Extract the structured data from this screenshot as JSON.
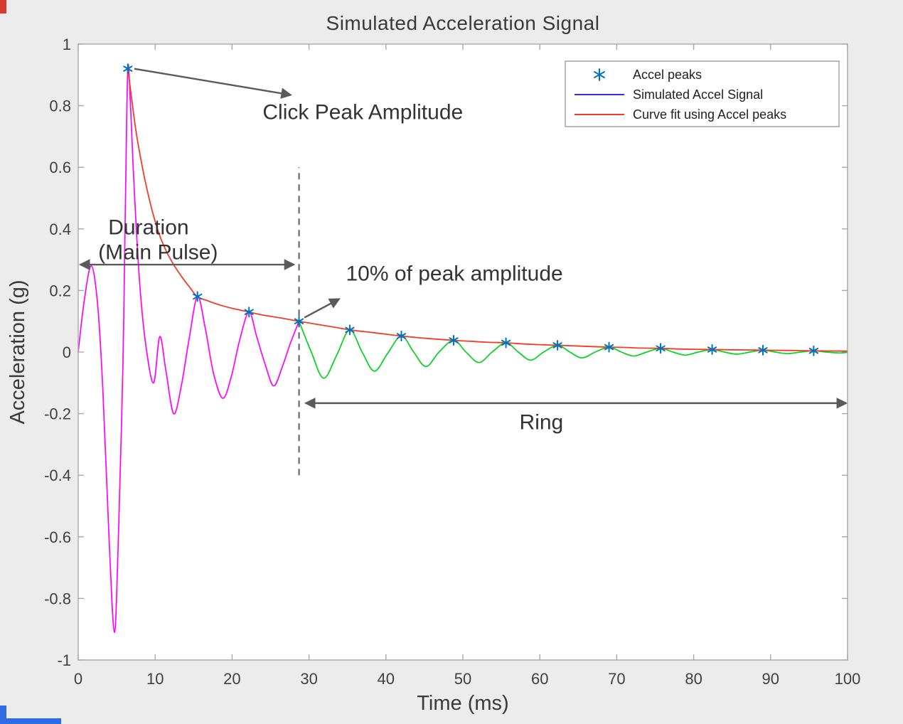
{
  "colors": {
    "figure_background": "#ececec",
    "plot_background": "#ffffff",
    "axis": "#a8a8a8",
    "annotation": "#5a5a5a",
    "text": "#3a3a3a"
  },
  "artifacts": {
    "top_left_color": "#d8392c",
    "bottom_left_color": "#2e6ce6"
  },
  "chart_data": {
    "type": "line",
    "title": "Simulated Acceleration Signal",
    "xlabel": "Time (ms)",
    "ylabel": "Acceleration (g)",
    "xlim": [
      0,
      100
    ],
    "ylim": [
      -1,
      1
    ],
    "xticks": [
      0,
      10,
      20,
      30,
      40,
      50,
      60,
      70,
      80,
      90,
      100
    ],
    "yticks": [
      -1,
      -0.8,
      -0.6,
      -0.4,
      -0.2,
      0,
      0.2,
      0.4,
      0.6,
      0.8,
      1
    ],
    "grid": false,
    "legend_position": "top-right",
    "series": [
      {
        "name": "Accel peaks",
        "type": "scatter",
        "marker": "asterisk",
        "color": "#0072BD",
        "points": [
          [
            6.45,
            0.92
          ],
          [
            15.5,
            0.18
          ],
          [
            22.2,
            0.13
          ],
          [
            28.7,
            0.1
          ],
          [
            35.3,
            0.072
          ],
          [
            42,
            0.052
          ],
          [
            48.8,
            0.038
          ],
          [
            55.6,
            0.03
          ],
          [
            62.3,
            0.022
          ],
          [
            69,
            0.016
          ],
          [
            75.7,
            0.012
          ],
          [
            82.4,
            0.008
          ],
          [
            89,
            0.006
          ],
          [
            95.6,
            0.004
          ]
        ]
      },
      {
        "name": "Simulated Accel Signal",
        "type": "line",
        "legend_color": "#3232dc",
        "segments": [
          {
            "name": "main-pulse",
            "color": "#ff00ff",
            "points": [
              [
                0,
                0
              ],
              [
                0.8,
                0.17
              ],
              [
                1.7,
                0.28
              ],
              [
                2.5,
                0.16
              ],
              [
                3.2,
                -0.12
              ],
              [
                4.0,
                -0.6
              ],
              [
                4.7,
                -0.91
              ],
              [
                5.2,
                -0.62
              ],
              [
                5.8,
                -0.05
              ],
              [
                6.15,
                0.5
              ],
              [
                6.45,
                0.92
              ],
              [
                6.8,
                0.8
              ],
              [
                7.3,
                0.52
              ],
              [
                8.0,
                0.22
              ],
              [
                8.8,
                0.02
              ],
              [
                9.8,
                -0.1
              ],
              [
                10.6,
                0.05
              ],
              [
                11.4,
                -0.06
              ],
              [
                12.4,
                -0.2
              ],
              [
                13.4,
                -0.11
              ],
              [
                14.4,
                0.04
              ],
              [
                15.5,
                0.18
              ],
              [
                16.5,
                0.08
              ],
              [
                17.6,
                -0.07
              ],
              [
                18.8,
                -0.15
              ],
              [
                19.9,
                -0.08
              ],
              [
                21,
                0.04
              ],
              [
                22.2,
                0.13
              ],
              [
                23.2,
                0.05
              ],
              [
                24.3,
                -0.04
              ],
              [
                25.4,
                -0.11
              ],
              [
                26.5,
                -0.05
              ],
              [
                27.6,
                0.03
              ],
              [
                28.7,
                0.1
              ]
            ]
          },
          {
            "name": "ring",
            "color": "#00d41e",
            "points": [
              [
                28.7,
                0.1
              ],
              [
                30.3,
                0
              ],
              [
                31.9,
                -0.085
              ],
              [
                33.6,
                -0.01
              ],
              [
                35.3,
                0.072
              ],
              [
                36.9,
                0
              ],
              [
                38.5,
                -0.062
              ],
              [
                40.2,
                -0.005
              ],
              [
                42,
                0.052
              ],
              [
                43.6,
                0
              ],
              [
                45.2,
                -0.047
              ],
              [
                46.9,
                0
              ],
              [
                48.8,
                0.038
              ],
              [
                50.4,
                0
              ],
              [
                52.1,
                -0.034
              ],
              [
                53.8,
                0
              ],
              [
                55.6,
                0.03
              ],
              [
                57.2,
                0
              ],
              [
                58.8,
                -0.026
              ],
              [
                60.5,
                0
              ],
              [
                62.3,
                0.022
              ],
              [
                63.9,
                0
              ],
              [
                65.5,
                -0.019
              ],
              [
                67.2,
                0
              ],
              [
                69,
                0.016
              ],
              [
                70.6,
                0
              ],
              [
                72.2,
                -0.013
              ],
              [
                73.9,
                0
              ],
              [
                75.7,
                0.012
              ],
              [
                77.3,
                0
              ],
              [
                78.9,
                -0.01
              ],
              [
                80.6,
                0
              ],
              [
                82.4,
                0.008
              ],
              [
                84,
                0
              ],
              [
                85.6,
                -0.007
              ],
              [
                87.3,
                0
              ],
              [
                89,
                0.006
              ],
              [
                90.6,
                0
              ],
              [
                92.2,
                -0.005
              ],
              [
                93.9,
                0
              ],
              [
                95.6,
                0.004
              ],
              [
                97.2,
                0
              ],
              [
                98.9,
                -0.003
              ],
              [
                100,
                -0.001
              ]
            ]
          }
        ]
      },
      {
        "name": "Curve fit using Accel peaks",
        "type": "line",
        "color": "#ee3d28",
        "points": [
          [
            6.45,
            0.92
          ],
          [
            7.5,
            0.72
          ],
          [
            8.5,
            0.58
          ],
          [
            9.5,
            0.47
          ],
          [
            10.5,
            0.385
          ],
          [
            11.5,
            0.325
          ],
          [
            12.5,
            0.28
          ],
          [
            13.5,
            0.243
          ],
          [
            14.5,
            0.21
          ],
          [
            15.5,
            0.18
          ],
          [
            17,
            0.165
          ],
          [
            18.5,
            0.152
          ],
          [
            20,
            0.142
          ],
          [
            22.2,
            0.13
          ],
          [
            24,
            0.12
          ],
          [
            26,
            0.112
          ],
          [
            28.7,
            0.1
          ],
          [
            31,
            0.09
          ],
          [
            33,
            0.082
          ],
          [
            35.3,
            0.072
          ],
          [
            38,
            0.064
          ],
          [
            40,
            0.058
          ],
          [
            42,
            0.052
          ],
          [
            44.5,
            0.046
          ],
          [
            46.5,
            0.042
          ],
          [
            48.8,
            0.038
          ],
          [
            51,
            0.035
          ],
          [
            53,
            0.032
          ],
          [
            55.6,
            0.03
          ],
          [
            58,
            0.026
          ],
          [
            60,
            0.024
          ],
          [
            62.3,
            0.022
          ],
          [
            64.5,
            0.02
          ],
          [
            66.5,
            0.018
          ],
          [
            69,
            0.016
          ],
          [
            71,
            0.015
          ],
          [
            73,
            0.013
          ],
          [
            75.7,
            0.012
          ],
          [
            78,
            0.01
          ],
          [
            80,
            0.009
          ],
          [
            82.4,
            0.008
          ],
          [
            84.5,
            0.0075
          ],
          [
            86.5,
            0.007
          ],
          [
            89,
            0.006
          ],
          [
            91,
            0.0055
          ],
          [
            93,
            0.005
          ],
          [
            95.6,
            0.004
          ],
          [
            100,
            0.003
          ]
        ]
      }
    ],
    "annotations": {
      "click_peak": {
        "text": "Click Peak Amplitude",
        "xy": [
          37,
          0.78
        ],
        "arrow": {
          "from": [
            7.3,
            0.92
          ],
          "to": [
            27.6,
            0.835
          ],
          "double": false
        }
      },
      "duration": {
        "line1": "Duration",
        "line2": "(Main Pulse)",
        "xy_line1": [
          3.9,
          0.405
        ],
        "xy_line2": [
          2.6,
          0.325
        ],
        "arrow": {
          "from": [
            0.3,
            0.284
          ],
          "to": [
            28,
            0.284
          ],
          "double": true
        }
      },
      "ten_percent": {
        "text": "10% of peak amplitude",
        "xy": [
          34.8,
          0.255
        ],
        "arrow": {
          "from": [
            29.4,
            0.112
          ],
          "to": [
            33.9,
            0.172
          ],
          "double": false
        }
      },
      "ring": {
        "text": "Ring",
        "xy": [
          60.2,
          -0.228
        ],
        "arrow": {
          "from": [
            29.6,
            -0.166
          ],
          "to": [
            99.8,
            -0.166
          ],
          "double": true
        }
      },
      "threshold": {
        "x": 28.7,
        "y_range": [
          -0.4,
          0.6
        ],
        "style": "dashed"
      }
    }
  }
}
